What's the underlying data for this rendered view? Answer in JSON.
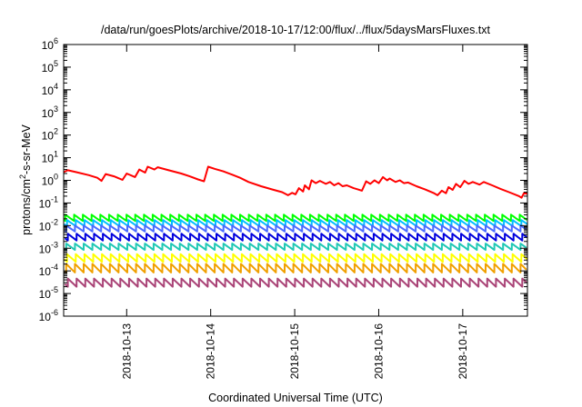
{
  "chart_data": {
    "type": "line",
    "title": "/data/run/goesPlots/archive/2018-10-17/12:00/flux/../flux/5daysMarsFluxes.txt",
    "xlabel": "Coordinated Universal Time (UTC)",
    "ylabel": "protons/cm²-s-sr-MeV",
    "ylabel_base": "protons/cm",
    "ylabel_sup": "2",
    "ylabel_rest": "-s-sr-MeV",
    "yscale": "log",
    "ylim": [
      1e-06,
      1000000.0
    ],
    "y_tick_exponents": [
      -6,
      -5,
      -4,
      -3,
      -2,
      -1,
      0,
      1,
      2,
      3,
      4,
      5,
      6
    ],
    "y_tick_base": "10",
    "xlim_days": [
      0,
      5.52
    ],
    "x_ticks": [
      {
        "label": "2018-10-13",
        "day": 0.75
      },
      {
        "label": "2018-10-14",
        "day": 1.75
      },
      {
        "label": "2018-10-15",
        "day": 2.75
      },
      {
        "label": "2018-10-16",
        "day": 3.75
      },
      {
        "label": "2018-10-17",
        "day": 4.75
      }
    ],
    "grid": false,
    "legend": "none",
    "series": [
      {
        "color": "#ff0000",
        "points": [
          [
            0.0,
            2.3
          ],
          [
            0.05,
            2.8
          ],
          [
            0.15,
            2.3
          ],
          [
            0.3,
            1.7
          ],
          [
            0.4,
            1.3
          ],
          [
            0.45,
            0.95
          ],
          [
            0.5,
            1.9
          ],
          [
            0.6,
            1.5
          ],
          [
            0.7,
            1.05
          ],
          [
            0.75,
            2.0
          ],
          [
            0.85,
            1.4
          ],
          [
            0.9,
            3.0
          ],
          [
            0.97,
            2.2
          ],
          [
            1.0,
            4.0
          ],
          [
            1.08,
            3.0
          ],
          [
            1.12,
            3.8
          ],
          [
            1.25,
            2.8
          ],
          [
            1.4,
            2.0
          ],
          [
            1.5,
            1.5
          ],
          [
            1.6,
            1.1
          ],
          [
            1.67,
            0.9
          ],
          [
            1.72,
            4.0
          ],
          [
            1.8,
            3.2
          ],
          [
            1.9,
            2.5
          ],
          [
            2.0,
            1.8
          ],
          [
            2.1,
            1.3
          ],
          [
            2.2,
            0.85
          ],
          [
            2.35,
            0.55
          ],
          [
            2.5,
            0.38
          ],
          [
            2.6,
            0.3
          ],
          [
            2.67,
            0.22
          ],
          [
            2.72,
            0.28
          ],
          [
            2.76,
            0.24
          ],
          [
            2.8,
            0.45
          ],
          [
            2.85,
            0.32
          ],
          [
            2.87,
            0.6
          ],
          [
            2.92,
            0.4
          ],
          [
            2.95,
            1.0
          ],
          [
            3.0,
            0.75
          ],
          [
            3.05,
            0.95
          ],
          [
            3.12,
            0.7
          ],
          [
            3.17,
            0.85
          ],
          [
            3.22,
            0.6
          ],
          [
            3.27,
            0.75
          ],
          [
            3.32,
            0.55
          ],
          [
            3.37,
            0.6
          ],
          [
            3.45,
            0.45
          ],
          [
            3.5,
            0.4
          ],
          [
            3.55,
            0.35
          ],
          [
            3.6,
            0.9
          ],
          [
            3.65,
            0.7
          ],
          [
            3.7,
            1.0
          ],
          [
            3.75,
            0.75
          ],
          [
            3.8,
            1.4
          ],
          [
            3.85,
            1.0
          ],
          [
            3.88,
            1.2
          ],
          [
            3.95,
            0.85
          ],
          [
            4.0,
            1.0
          ],
          [
            4.05,
            0.75
          ],
          [
            4.1,
            0.8
          ],
          [
            4.2,
            0.55
          ],
          [
            4.3,
            0.4
          ],
          [
            4.4,
            0.28
          ],
          [
            4.45,
            0.22
          ],
          [
            4.5,
            0.35
          ],
          [
            4.55,
            0.27
          ],
          [
            4.58,
            0.5
          ],
          [
            4.63,
            0.38
          ],
          [
            4.67,
            0.7
          ],
          [
            4.72,
            0.5
          ],
          [
            4.77,
            0.95
          ],
          [
            4.82,
            0.7
          ],
          [
            4.87,
            0.85
          ],
          [
            4.95,
            0.65
          ],
          [
            5.0,
            0.85
          ],
          [
            5.1,
            0.6
          ],
          [
            5.2,
            0.42
          ],
          [
            5.3,
            0.3
          ],
          [
            5.42,
            0.2
          ],
          [
            5.45,
            0.17
          ],
          [
            5.48,
            0.28
          ],
          [
            5.52,
            0.25
          ]
        ]
      },
      {
        "color": "#00ff00",
        "base": 0.016,
        "amp": 1.9,
        "start": 0.02,
        "period": 0.104
      },
      {
        "color": "#00bfff",
        "base": 0.0095,
        "amp": 1.85,
        "start": 0.04,
        "period": 0.104
      },
      {
        "color": "#4b6bff",
        "base": 0.0055,
        "amp": 1.85,
        "start": 0.03,
        "period": 0.104
      },
      {
        "color": "#0000dd",
        "base": 0.0022,
        "amp": 2.0,
        "start": 0.05,
        "period": 0.104
      },
      {
        "color": "#20c8b4",
        "base": 0.00085,
        "amp": 1.9,
        "start": 0.03,
        "period": 0.104
      },
      {
        "color": "#ffff00",
        "base": 0.00025,
        "amp": 2.2,
        "start": 0.04,
        "period": 0.104
      },
      {
        "color": "#f0a000",
        "base": 8.5e-05,
        "amp": 2.4,
        "start": 0.03,
        "period": 0.104
      },
      {
        "color": "#aa4477",
        "base": 2e-05,
        "amp": 2.3,
        "start": 0.05,
        "period": 0.104
      }
    ]
  }
}
